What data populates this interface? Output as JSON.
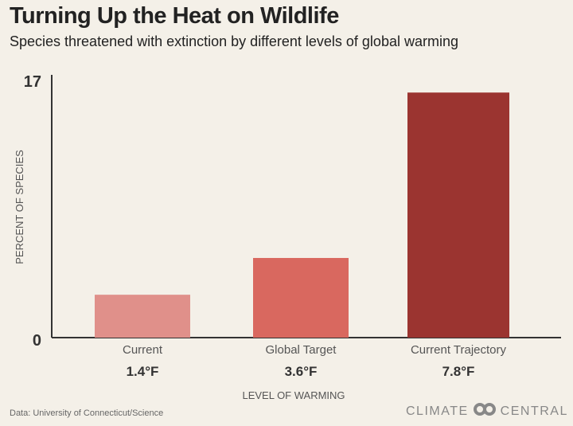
{
  "chart_data": {
    "type": "bar",
    "title": "Turning Up the Heat on Wildlife",
    "subtitle": "Species threatened with extinction by different levels of global warming",
    "categories": [
      "Current",
      "Global Target",
      "Current Trajectory"
    ],
    "category_sublabels": [
      "1.4°F",
      "3.6°F",
      "7.8°F"
    ],
    "values": [
      2.8,
      5.2,
      16
    ],
    "colors": [
      "#e0908a",
      "#d9685f",
      "#9b3430"
    ],
    "xlabel": "LEVEL OF WARMING",
    "ylabel": "PERCENT OF SPECIES",
    "ylim": [
      0,
      17
    ],
    "yticks": [
      "0",
      "17"
    ],
    "grid": false
  },
  "source": "Data: University of Connecticut/Science",
  "logo": {
    "left": "CLIMATE",
    "right": "CENTRAL"
  }
}
